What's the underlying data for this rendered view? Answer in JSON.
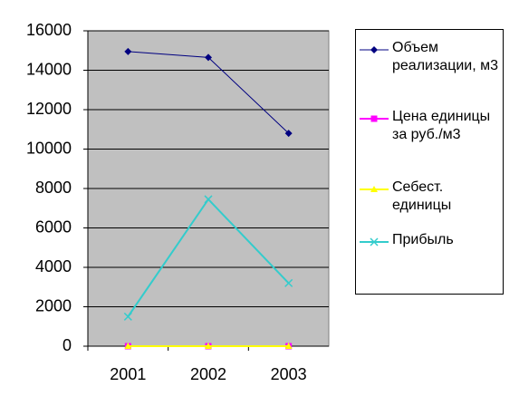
{
  "chart_data": {
    "type": "line",
    "categories": [
      "2001",
      "2002",
      "2003"
    ],
    "series": [
      {
        "name": "Объем реализации, м3",
        "color": "#000080",
        "marker": "diamond",
        "values": [
          14950,
          14650,
          10800
        ]
      },
      {
        "name": "Цена единицы за руб./м3",
        "color": "#ff00ff",
        "marker": "square",
        "values": [
          0,
          0,
          0
        ]
      },
      {
        "name": "Себест. единицы",
        "color": "#ffff00",
        "marker": "triangle",
        "values": [
          0,
          0,
          0
        ]
      },
      {
        "name": "Прибыль",
        "color": "#33cccc",
        "marker": "x",
        "values": [
          1500,
          7450,
          3200
        ]
      }
    ],
    "ylim": [
      0,
      16000
    ],
    "yticks": [
      0,
      2000,
      4000,
      6000,
      8000,
      10000,
      12000,
      14000,
      16000
    ],
    "grid": true,
    "legend": "right"
  }
}
